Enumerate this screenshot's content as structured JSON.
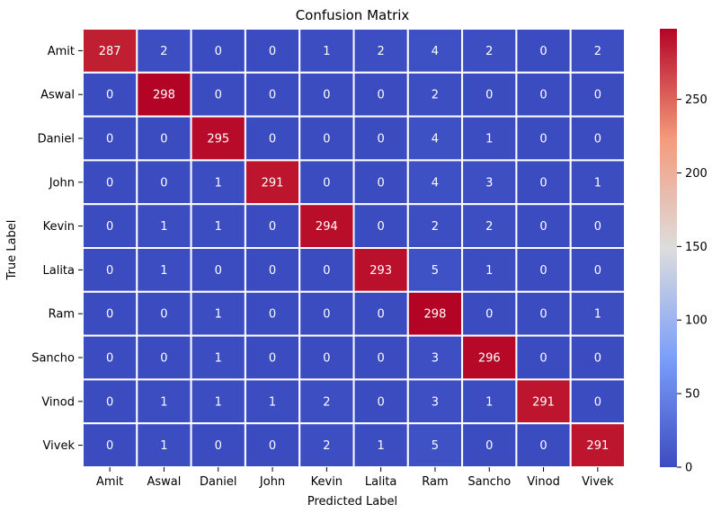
{
  "chart_data": {
    "type": "heatmap",
    "title": "Confusion Matrix",
    "xlabel": "Predicted Label",
    "ylabel": "True Label",
    "x_categories": [
      "Amit",
      "Aswal",
      "Daniel",
      "John",
      "Kevin",
      "Lalita",
      "Ram",
      "Sancho",
      "Vinod",
      "Vivek"
    ],
    "y_categories": [
      "Amit",
      "Aswal",
      "Daniel",
      "John",
      "Kevin",
      "Lalita",
      "Ram",
      "Sancho",
      "Vinod",
      "Vivek"
    ],
    "values": [
      [
        287,
        2,
        0,
        0,
        1,
        2,
        4,
        2,
        0,
        2
      ],
      [
        0,
        298,
        0,
        0,
        0,
        0,
        2,
        0,
        0,
        0
      ],
      [
        0,
        0,
        295,
        0,
        0,
        0,
        4,
        1,
        0,
        0
      ],
      [
        0,
        0,
        1,
        291,
        0,
        0,
        4,
        3,
        0,
        1
      ],
      [
        0,
        1,
        1,
        0,
        294,
        0,
        2,
        2,
        0,
        0
      ],
      [
        0,
        1,
        0,
        0,
        0,
        293,
        5,
        1,
        0,
        0
      ],
      [
        0,
        0,
        1,
        0,
        0,
        0,
        298,
        0,
        0,
        1
      ],
      [
        0,
        0,
        1,
        0,
        0,
        0,
        3,
        296,
        0,
        0
      ],
      [
        0,
        1,
        1,
        1,
        2,
        0,
        3,
        1,
        291,
        0
      ],
      [
        0,
        1,
        0,
        0,
        2,
        1,
        5,
        0,
        0,
        291
      ]
    ],
    "colormap": "coolwarm",
    "colorbar": {
      "range": [
        0,
        298
      ],
      "ticks": [
        0,
        50,
        100,
        150,
        200,
        250
      ]
    },
    "annotated": true,
    "grid_lines": "white"
  }
}
